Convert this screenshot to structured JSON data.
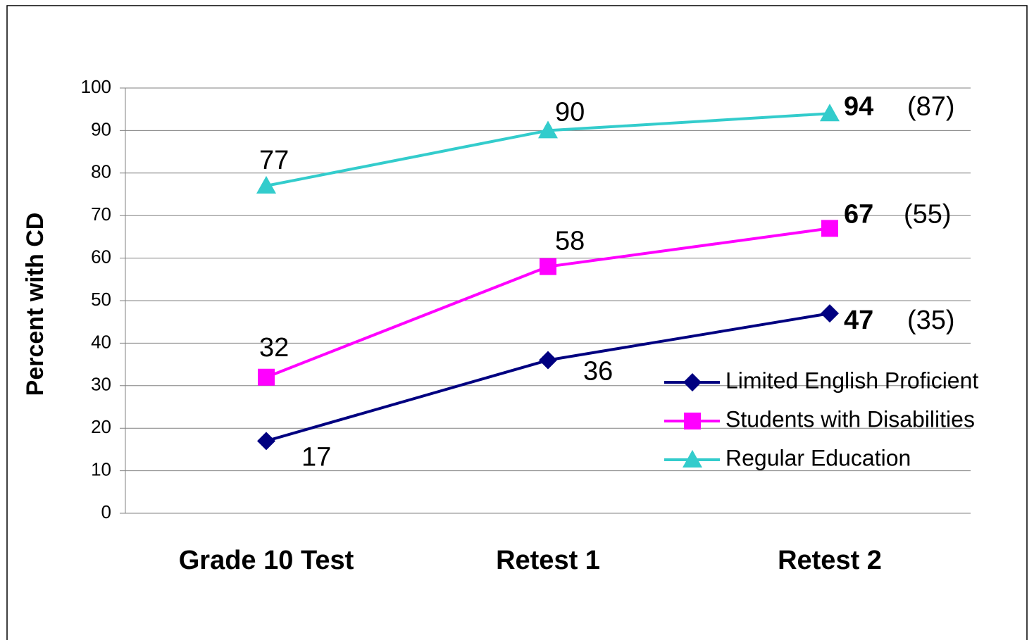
{
  "chart_data": {
    "type": "line",
    "y_axis_label": "Percent with CD",
    "categories": [
      "Grade 10 Test",
      "Retest 1",
      "Retest 2"
    ],
    "series": [
      {
        "name": "Limited English Proficient",
        "color": "#000080",
        "marker": "diamond",
        "values": [
          17,
          36,
          47
        ],
        "annotation": "(35)"
      },
      {
        "name": "Students with Disabilities",
        "color": "#ff00ff",
        "marker": "square",
        "values": [
          32,
          58,
          67
        ],
        "annotation": "(55)"
      },
      {
        "name": "Regular Education",
        "color": "#33cccc",
        "marker": "triangle",
        "values": [
          77,
          90,
          94
        ],
        "annotation": "(87)"
      }
    ],
    "ylim": [
      0,
      100
    ],
    "yticks": [
      0,
      10,
      20,
      30,
      40,
      50,
      60,
      70,
      80,
      90,
      100
    ],
    "grid": true,
    "legend": "lower right"
  }
}
